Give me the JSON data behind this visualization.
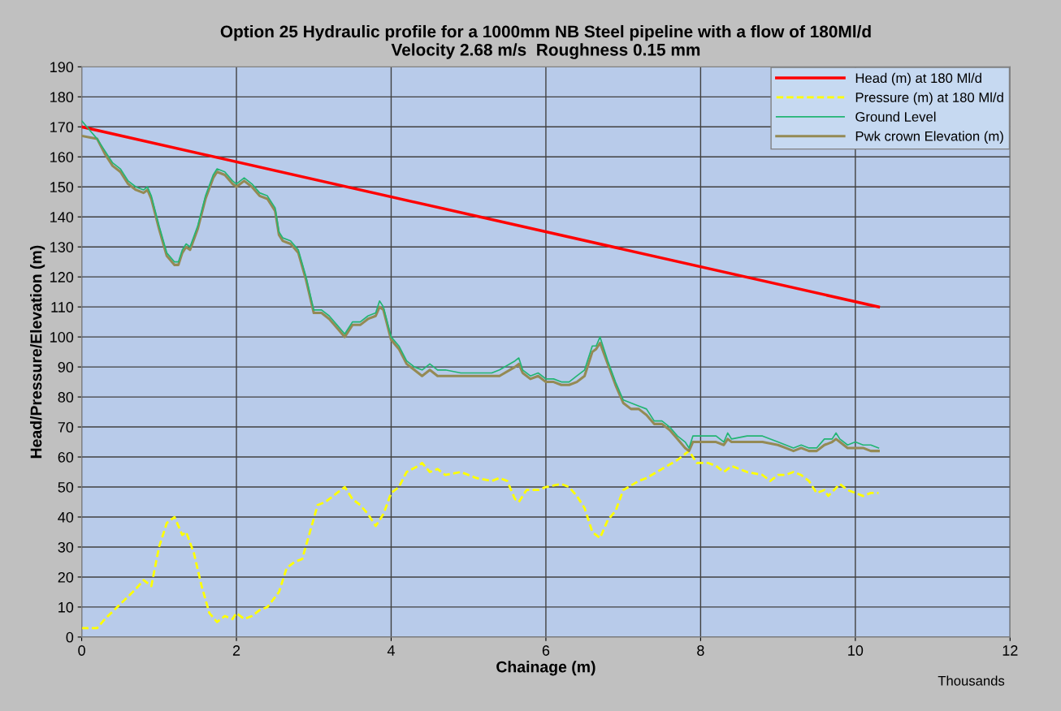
{
  "chart_data": {
    "type": "line",
    "title": "Option 25 Hydraulic profile for a 1000mm NB Steel pipeline with a flow of 180Ml/d\nVelocity 2.68 m/s  Roughness 0.15 mm",
    "xlabel": "Chainage (m)",
    "ylabel": "Head/Pressure/Elevation (m)",
    "annotations": [
      "Thousands"
    ],
    "xlim": [
      0,
      12
    ],
    "xticks": [
      0,
      2,
      4,
      6,
      8,
      10,
      12
    ],
    "ylim": [
      0,
      190
    ],
    "yticks": [
      0,
      10,
      20,
      30,
      40,
      50,
      60,
      70,
      80,
      90,
      100,
      110,
      120,
      130,
      140,
      150,
      160,
      170,
      180,
      190
    ],
    "grid": true,
    "legend": "top right",
    "marker": "none",
    "series": [
      {
        "name": "Head (m) at 180 Ml/d",
        "color": "#ff0000",
        "line_style": "solid",
        "x": [
          0,
          10.3
        ],
        "values": [
          170,
          110
        ]
      },
      {
        "name": "Pressure (m) at 180 Ml/d",
        "color": "#ffff00",
        "line_style": "dashed",
        "x": [
          0,
          0.2,
          0.3,
          0.5,
          0.7,
          0.8,
          0.9,
          1.0,
          1.1,
          1.2,
          1.3,
          1.35,
          1.45,
          1.55,
          1.65,
          1.75,
          1.85,
          1.95,
          2.0,
          2.1,
          2.2,
          2.3,
          2.4,
          2.55,
          2.65,
          2.75,
          2.85,
          2.95,
          3.05,
          3.15,
          3.3,
          3.4,
          3.5,
          3.6,
          3.7,
          3.8,
          3.9,
          4.0,
          4.1,
          4.2,
          4.35,
          4.4,
          4.5,
          4.6,
          4.7,
          4.9,
          5.1,
          5.3,
          5.4,
          5.5,
          5.6,
          5.65,
          5.75,
          5.9,
          6.0,
          6.2,
          6.3,
          6.4,
          6.5,
          6.6,
          6.7,
          6.8,
          6.9,
          7.0,
          7.2,
          7.3,
          7.5,
          7.7,
          7.85,
          7.95,
          8.1,
          8.2,
          8.3,
          8.4,
          8.6,
          8.8,
          8.9,
          9.0,
          9.1,
          9.2,
          9.3,
          9.4,
          9.5,
          9.6,
          9.65,
          9.8,
          9.9,
          10.0,
          10.1,
          10.2,
          10.3
        ],
        "values": [
          3,
          3,
          6,
          11,
          16,
          19,
          17,
          30,
          38,
          40,
          34,
          35,
          28,
          17,
          8,
          5,
          7,
          6,
          8,
          6,
          7,
          9,
          10,
          15,
          23,
          25,
          26,
          35,
          44,
          45,
          48,
          50,
          46,
          44,
          41,
          37,
          41,
          48,
          50,
          55,
          57,
          58,
          55,
          56,
          54,
          55,
          53,
          52,
          53,
          52,
          46,
          45,
          49,
          49,
          50,
          51,
          50,
          47,
          43,
          35,
          33,
          39,
          42,
          49,
          52,
          53,
          56,
          59,
          62,
          58,
          58,
          57,
          55,
          57,
          55,
          54,
          52,
          54,
          54,
          55,
          54,
          52,
          48,
          49,
          47,
          51,
          49,
          48,
          47,
          48,
          48
        ]
      },
      {
        "name": "Ground Level",
        "color": "#22b573",
        "line_style": "solid",
        "x": [
          0,
          0.1,
          0.2,
          0.3,
          0.4,
          0.5,
          0.6,
          0.7,
          0.8,
          0.85,
          0.9,
          1.0,
          1.1,
          1.2,
          1.25,
          1.3,
          1.35,
          1.4,
          1.5,
          1.6,
          1.7,
          1.75,
          1.85,
          1.95,
          2.0,
          2.1,
          2.2,
          2.3,
          2.4,
          2.5,
          2.55,
          2.6,
          2.7,
          2.8,
          2.9,
          3.0,
          3.1,
          3.2,
          3.3,
          3.4,
          3.5,
          3.6,
          3.7,
          3.8,
          3.85,
          3.9,
          4.0,
          4.1,
          4.2,
          4.3,
          4.4,
          4.5,
          4.6,
          4.7,
          4.9,
          5.3,
          5.4,
          5.6,
          5.65,
          5.7,
          5.8,
          5.9,
          6.0,
          6.1,
          6.2,
          6.3,
          6.4,
          6.5,
          6.6,
          6.65,
          6.7,
          6.8,
          6.9,
          7.0,
          7.1,
          7.2,
          7.3,
          7.4,
          7.5,
          7.6,
          7.7,
          7.8,
          7.85,
          7.9,
          8.0,
          8.2,
          8.3,
          8.35,
          8.4,
          8.6,
          8.8,
          9.0,
          9.1,
          9.2,
          9.3,
          9.4,
          9.5,
          9.6,
          9.7,
          9.75,
          9.8,
          9.9,
          10.0,
          10.1,
          10.2,
          10.3
        ],
        "values": [
          172,
          169,
          166,
          162,
          158,
          156,
          152,
          150,
          149,
          150,
          147,
          137,
          128,
          125,
          125,
          129,
          131,
          130,
          137,
          147,
          154,
          156,
          155,
          152,
          151,
          153,
          151,
          148,
          147,
          143,
          135,
          133,
          132,
          129,
          120,
          109,
          109,
          107,
          104,
          101,
          105,
          105,
          107,
          108,
          112,
          110,
          100,
          97,
          92,
          90,
          89,
          91,
          89,
          89,
          88,
          88,
          89,
          92,
          93,
          89,
          87,
          88,
          86,
          86,
          85,
          85,
          87,
          89,
          97,
          97,
          100,
          92,
          85,
          79,
          78,
          77,
          76,
          72,
          72,
          70,
          67,
          65,
          63,
          67,
          67,
          67,
          65,
          68,
          66,
          67,
          67,
          65,
          64,
          63,
          64,
          63,
          63,
          66,
          66,
          68,
          66,
          64,
          65,
          64,
          64,
          63
        ]
      },
      {
        "name": "Pwk crown Elevation (m)",
        "color": "#948a54",
        "line_style": "solid",
        "x": [
          0,
          0.1,
          0.2,
          0.3,
          0.4,
          0.5,
          0.6,
          0.7,
          0.8,
          0.85,
          0.9,
          1.0,
          1.1,
          1.2,
          1.25,
          1.3,
          1.35,
          1.4,
          1.5,
          1.6,
          1.7,
          1.75,
          1.85,
          1.95,
          2.0,
          2.1,
          2.2,
          2.3,
          2.4,
          2.5,
          2.55,
          2.6,
          2.7,
          2.8,
          2.9,
          3.0,
          3.1,
          3.2,
          3.3,
          3.4,
          3.5,
          3.6,
          3.7,
          3.8,
          3.85,
          3.9,
          4.0,
          4.1,
          4.2,
          4.3,
          4.4,
          4.5,
          4.6,
          4.7,
          4.9,
          5.3,
          5.4,
          5.6,
          5.65,
          5.7,
          5.8,
          5.9,
          6.0,
          6.1,
          6.2,
          6.3,
          6.4,
          6.5,
          6.6,
          6.65,
          6.7,
          6.8,
          6.9,
          7.0,
          7.1,
          7.2,
          7.3,
          7.4,
          7.5,
          7.6,
          7.7,
          7.8,
          7.85,
          7.9,
          8.0,
          8.2,
          8.3,
          8.35,
          8.4,
          8.6,
          8.8,
          9.0,
          9.1,
          9.2,
          9.3,
          9.4,
          9.5,
          9.6,
          9.7,
          9.75,
          9.8,
          9.9,
          10.0,
          10.1,
          10.2,
          10.3
        ],
        "values": [
          167,
          166.5,
          166,
          161,
          157,
          155,
          151,
          149,
          148,
          149,
          146,
          136,
          127,
          124,
          124,
          128,
          130,
          129,
          136,
          146,
          153,
          155,
          154,
          151,
          150,
          152,
          150,
          147,
          146,
          142,
          134,
          132,
          131,
          128,
          119,
          108,
          108,
          106,
          103,
          100,
          104,
          104,
          106,
          107,
          110,
          109,
          99,
          96,
          91,
          89,
          87,
          89,
          87,
          87,
          87,
          87,
          87,
          90,
          91,
          88,
          86,
          87,
          85,
          85,
          84,
          84,
          85,
          87,
          95,
          96,
          98,
          91,
          84,
          78,
          76,
          76,
          74,
          71,
          71,
          69,
          66,
          63,
          62,
          65,
          65,
          65,
          64,
          66,
          65,
          65,
          65,
          64,
          63,
          62,
          63,
          62,
          62,
          64,
          65,
          66,
          65,
          63,
          63,
          63,
          62,
          62
        ]
      }
    ]
  }
}
